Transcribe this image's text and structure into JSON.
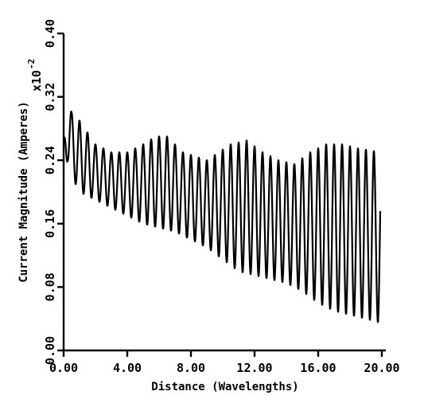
{
  "chart_data": {
    "type": "line",
    "xlabel": "Distance (Wavelengths)",
    "ylabel": "Current Magnitude (Amperes)",
    "y_multiplier": "x10",
    "y_multiplier_exp": "-2",
    "xlim": [
      0,
      20
    ],
    "ylim": [
      0,
      0.4
    ],
    "x_ticks": [
      "0.00",
      "4.00",
      "8.00",
      "12.00",
      "16.00",
      "20.00"
    ],
    "y_ticks": [
      "0.00",
      "0.08",
      "0.16",
      "0.24",
      "0.32",
      "0.40"
    ],
    "grid": false,
    "series": [
      {
        "cycles_per_wavelength": 2,
        "x_end": 19.9,
        "upper_envelope": [
          [
            0.0,
            0.26
          ],
          [
            0.25,
            0.335
          ],
          [
            0.5,
            0.3
          ],
          [
            1.0,
            0.29
          ],
          [
            2.0,
            0.26
          ],
          [
            3.0,
            0.25
          ],
          [
            4.0,
            0.25
          ],
          [
            5.0,
            0.26
          ],
          [
            5.8,
            0.27
          ],
          [
            6.5,
            0.27
          ],
          [
            7.5,
            0.25
          ],
          [
            9.0,
            0.24
          ],
          [
            10.5,
            0.26
          ],
          [
            11.5,
            0.265
          ],
          [
            12.5,
            0.25
          ],
          [
            13.5,
            0.24
          ],
          [
            14.5,
            0.235
          ],
          [
            15.5,
            0.25
          ],
          [
            16.5,
            0.26
          ],
          [
            17.5,
            0.26
          ],
          [
            18.5,
            0.255
          ],
          [
            19.9,
            0.25
          ]
        ],
        "lower_envelope": [
          [
            0.0,
            0.2
          ],
          [
            0.25,
            0.24
          ],
          [
            0.5,
            0.22
          ],
          [
            1.0,
            0.2
          ],
          [
            2.0,
            0.19
          ],
          [
            3.0,
            0.18
          ],
          [
            4.0,
            0.17
          ],
          [
            5.0,
            0.16
          ],
          [
            6.0,
            0.155
          ],
          [
            7.0,
            0.15
          ],
          [
            8.0,
            0.14
          ],
          [
            9.0,
            0.13
          ],
          [
            10.0,
            0.115
          ],
          [
            11.0,
            0.1
          ],
          [
            12.0,
            0.095
          ],
          [
            13.0,
            0.09
          ],
          [
            14.0,
            0.085
          ],
          [
            15.0,
            0.075
          ],
          [
            16.0,
            0.06
          ],
          [
            17.0,
            0.05
          ],
          [
            18.0,
            0.045
          ],
          [
            19.0,
            0.04
          ],
          [
            19.9,
            0.035
          ]
        ]
      }
    ]
  }
}
